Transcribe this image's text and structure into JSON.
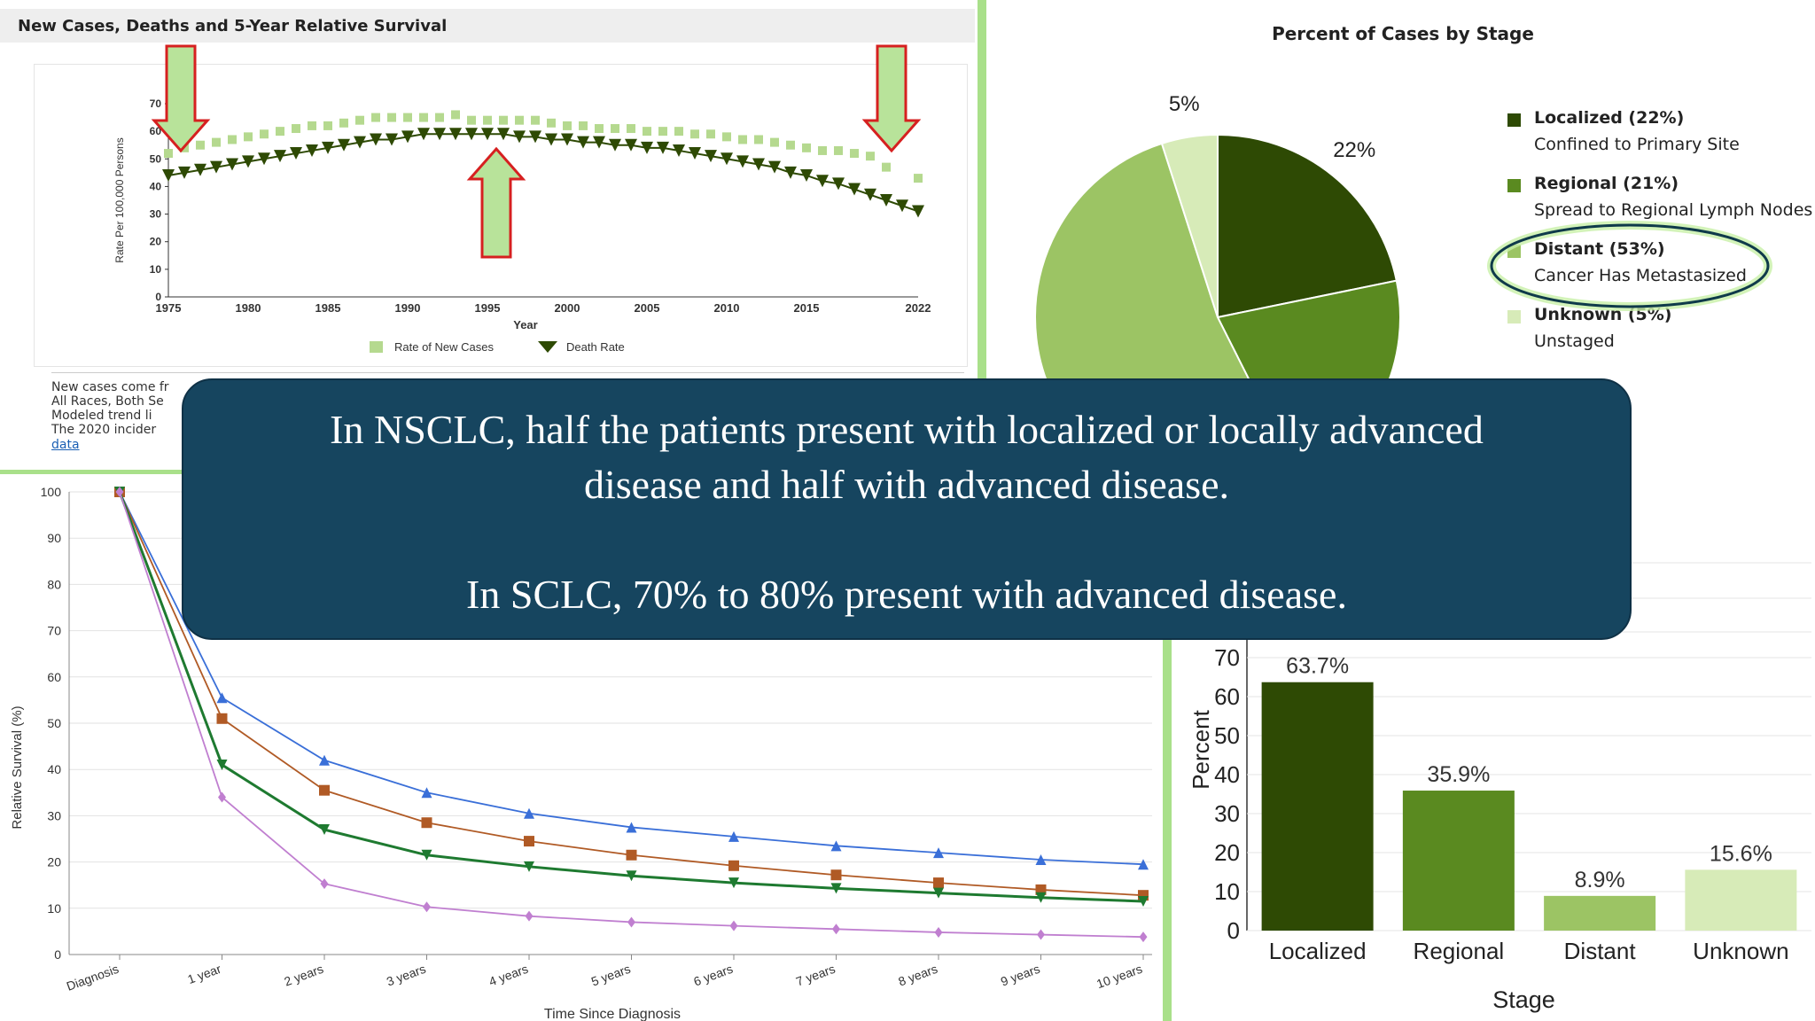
{
  "panels": {
    "trends": {
      "title": "New Cases, Deaths and 5-Year Relative Survival",
      "note_lines": [
        "New cases come fr",
        "All Races, Both Se",
        "Modeled trend li",
        "The 2020 incider"
      ],
      "note_link": "data"
    },
    "stage_pie": {
      "title": "Percent of Cases by Stage",
      "legend": [
        {
          "name": "Localized (22%)",
          "desc": "Confined to Primary Site",
          "color": "#2e4a04"
        },
        {
          "name": "Regional (21%)",
          "desc": "Spread to Regional Lymph Nodes",
          "color": "#5a8a20"
        },
        {
          "name": "Distant (53%)",
          "desc": "Cancer Has Metastasized",
          "color": "#9cc464"
        },
        {
          "name": "Unknown (5%)",
          "desc": "Unstaged",
          "color": "#d7ebb8"
        }
      ]
    }
  },
  "overlay": {
    "line1": "In NSCLC, half the patients present with localized or locally advanced",
    "line2": "disease and half with advanced disease.",
    "line3": "In SCLC, 70% to 80% present with advanced disease."
  },
  "chart_data": [
    {
      "type": "line",
      "title": "New Cases, Deaths and 5-Year Relative Survival",
      "xlabel": "Year",
      "ylabel": "Rate Per 100,000 Persons",
      "x_tick_labels": [
        "1975",
        "1980",
        "1985",
        "1990",
        "1995",
        "2000",
        "2005",
        "2010",
        "2015",
        "2022"
      ],
      "y_tick_labels": [
        "0",
        "10",
        "20",
        "30",
        "40",
        "50",
        "60",
        "70"
      ],
      "xlim": [
        1975,
        2022
      ],
      "ylim": [
        0,
        70
      ],
      "x": [
        1975,
        1976,
        1977,
        1978,
        1979,
        1980,
        1981,
        1982,
        1983,
        1984,
        1985,
        1986,
        1987,
        1988,
        1989,
        1990,
        1991,
        1992,
        1993,
        1994,
        1995,
        1996,
        1997,
        1998,
        1999,
        2000,
        2001,
        2002,
        2003,
        2004,
        2005,
        2006,
        2007,
        2008,
        2009,
        2010,
        2011,
        2012,
        2013,
        2014,
        2015,
        2016,
        2017,
        2018,
        2019,
        2020,
        2021,
        2022
      ],
      "series": [
        {
          "name": "Rate of New Cases",
          "color": "#b5d98f",
          "marker": "square",
          "values": [
            52,
            54,
            55,
            56,
            57,
            58,
            59,
            60,
            61,
            62,
            62,
            63,
            64,
            65,
            65,
            65,
            65,
            65,
            66,
            64,
            64,
            64,
            64,
            64,
            63,
            62,
            62,
            61,
            61,
            61,
            60,
            60,
            60,
            59,
            59,
            58,
            57,
            57,
            56,
            55,
            54,
            53,
            53,
            52,
            51,
            47,
            null,
            43
          ]
        },
        {
          "name": "Death Rate",
          "color": "#2e4a04",
          "marker": "triangle-down",
          "values": [
            44,
            45,
            46,
            47,
            48,
            49,
            50,
            51,
            52,
            53,
            54,
            55,
            56,
            57,
            57,
            58,
            59,
            59,
            59,
            59,
            59,
            59,
            58,
            58,
            57,
            57,
            56,
            56,
            55,
            55,
            54,
            54,
            53,
            52,
            51,
            50,
            49,
            48,
            47,
            45,
            44,
            42,
            41,
            39,
            37,
            35,
            33,
            31
          ]
        }
      ],
      "legend": "bottom-center",
      "annotations": [
        "down-arrow at 1975",
        "up-arrow at 1995",
        "down-arrow at 2020"
      ]
    },
    {
      "type": "pie",
      "title": "Percent of Cases by Stage",
      "labels": [
        "Localized",
        "Regional",
        "Distant",
        "Unknown"
      ],
      "values": [
        22,
        21,
        53,
        5
      ],
      "slice_labels": [
        "22%",
        "21%",
        "53%",
        "5%"
      ],
      "colors": [
        "#2e4a04",
        "#5a8a20",
        "#9cc464",
        "#d7ebb8"
      ],
      "legend": "right",
      "highlighted": "Distant"
    },
    {
      "type": "line",
      "xlabel": "Time Since Diagnosis",
      "ylabel": "Relative Survival (%)",
      "categories": [
        "Diagnosis",
        "1 year",
        "2 years",
        "3 years",
        "4 years",
        "5 years",
        "6 years",
        "7 years",
        "8 years",
        "9 years",
        "10 years"
      ],
      "y_tick_labels": [
        "0",
        "10",
        "20",
        "30",
        "40",
        "50",
        "60",
        "70",
        "80",
        "90",
        "100"
      ],
      "ylim": [
        0,
        100
      ],
      "grid": true,
      "series": [
        {
          "color": "#3a6fd8",
          "marker": "triangle-up",
          "values": [
            100,
            55.5,
            42,
            35,
            30.5,
            27.5,
            25.5,
            23.5,
            22,
            20.5,
            19.5
          ]
        },
        {
          "color": "#b05a25",
          "marker": "square",
          "values": [
            100,
            51,
            35.5,
            28.5,
            24.5,
            21.5,
            19.2,
            17.2,
            15.5,
            14,
            12.8
          ]
        },
        {
          "color": "#1e7a30",
          "marker": "triangle-down",
          "values": [
            100,
            41,
            27,
            21.5,
            19,
            17,
            15.5,
            14.3,
            13.3,
            12.3,
            11.5
          ]
        },
        {
          "color": "#c07fd0",
          "marker": "diamond",
          "values": [
            100,
            34,
            15.3,
            10.3,
            8.3,
            7,
            6.2,
            5.5,
            4.8,
            4.3,
            3.8
          ]
        }
      ]
    },
    {
      "type": "bar",
      "xlabel": "Stage",
      "ylabel": "Percent",
      "categories": [
        "Localized",
        "Regional",
        "Distant",
        "Unknown"
      ],
      "values": [
        63.7,
        35.9,
        8.9,
        15.6
      ],
      "value_labels": [
        "63.7%",
        "35.9%",
        "8.9%",
        "15.6%"
      ],
      "colors": [
        "#2e4a04",
        "#5a8a20",
        "#9cc464",
        "#d7ebb8"
      ],
      "y_tick_labels": [
        "0",
        "10",
        "20",
        "30",
        "40",
        "50",
        "60",
        "70"
      ],
      "ylim": [
        0,
        70
      ]
    }
  ]
}
